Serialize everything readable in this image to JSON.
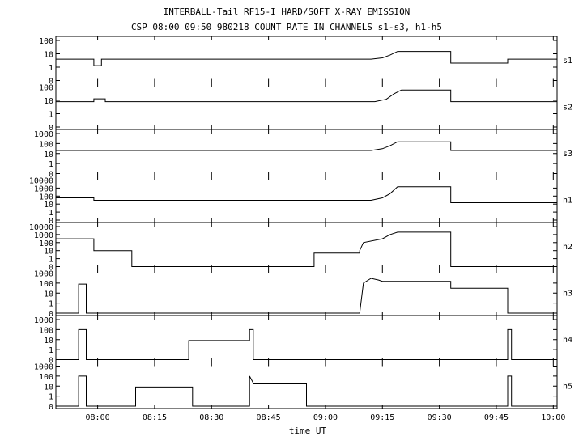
{
  "chart_data": {
    "type": "line",
    "title": "INTERBALL-Tail RF15-I HARD/SOFT X-RAY EMISSION",
    "subtitle": "CSP 08:00 09:50 980218  COUNT RATE IN CHANNELS s1-s3, h1-h5",
    "xlabel": "time UT",
    "x_ticks": [
      {
        "value": 480,
        "label": "08:00"
      },
      {
        "value": 495,
        "label": "08:15"
      },
      {
        "value": 510,
        "label": "08:30"
      },
      {
        "value": 525,
        "label": "08:45"
      },
      {
        "value": 540,
        "label": "09:00"
      },
      {
        "value": 555,
        "label": "09:15"
      },
      {
        "value": 570,
        "label": "09:30"
      },
      {
        "value": 585,
        "label": "09:45"
      },
      {
        "value": 600,
        "label": "10:00"
      }
    ],
    "xlim": [
      469,
      601
    ],
    "yscale": "log",
    "panels": [
      {
        "name": "s1",
        "y_ticks": [
          "100",
          "10",
          "1",
          "0"
        ],
        "points": [
          [
            469,
            4
          ],
          [
            479,
            4
          ],
          [
            479,
            1.3
          ],
          [
            481,
            1.3
          ],
          [
            481,
            4
          ],
          [
            552,
            4
          ],
          [
            555,
            5
          ],
          [
            557,
            8
          ],
          [
            559,
            15
          ],
          [
            560,
            15
          ],
          [
            573,
            15
          ],
          [
            573,
            2
          ],
          [
            588,
            2
          ],
          [
            588,
            4
          ],
          [
            601,
            4
          ]
        ]
      },
      {
        "name": "s2",
        "y_ticks": [
          "100",
          "10",
          "1",
          "0"
        ],
        "points": [
          [
            469,
            8
          ],
          [
            479,
            8
          ],
          [
            479,
            13
          ],
          [
            482,
            13
          ],
          [
            482,
            8
          ],
          [
            553,
            8
          ],
          [
            556,
            12
          ],
          [
            558,
            30
          ],
          [
            560,
            60
          ],
          [
            573,
            60
          ],
          [
            573,
            8
          ],
          [
            588,
            8
          ],
          [
            588,
            8
          ],
          [
            601,
            8
          ]
        ]
      },
      {
        "name": "s3",
        "y_ticks": [
          "1000",
          "100",
          "10",
          "1",
          "0"
        ],
        "points": [
          [
            469,
            20
          ],
          [
            552,
            20
          ],
          [
            555,
            30
          ],
          [
            557,
            60
          ],
          [
            559,
            150
          ],
          [
            573,
            150
          ],
          [
            573,
            20
          ],
          [
            601,
            20
          ]
        ]
      },
      {
        "name": "h1",
        "y_ticks": [
          "10000",
          "1000",
          "100",
          "10",
          "1",
          "0"
        ],
        "points": [
          [
            469,
            60
          ],
          [
            479,
            60
          ],
          [
            479,
            30
          ],
          [
            552,
            30
          ],
          [
            555,
            60
          ],
          [
            557,
            200
          ],
          [
            559,
            1500
          ],
          [
            573,
            1500
          ],
          [
            573,
            15
          ],
          [
            601,
            15
          ]
        ]
      },
      {
        "name": "h2",
        "y_ticks": [
          "10000",
          "1000",
          "100",
          "10",
          "1",
          "0"
        ],
        "points": [
          [
            469,
            300
          ],
          [
            479,
            300
          ],
          [
            479,
            10
          ],
          [
            489,
            10
          ],
          [
            489,
            0
          ],
          [
            537,
            0
          ],
          [
            537,
            5
          ],
          [
            549,
            5
          ],
          [
            549,
            10
          ],
          [
            550,
            100
          ],
          [
            555,
            300
          ],
          [
            557,
            1000
          ],
          [
            559,
            2000
          ],
          [
            573,
            2000
          ],
          [
            573,
            0
          ],
          [
            601,
            0
          ]
        ]
      },
      {
        "name": "h3",
        "y_ticks": [
          "1000",
          "100",
          "10",
          "1",
          "0"
        ],
        "points": [
          [
            469,
            0
          ],
          [
            475,
            0
          ],
          [
            475,
            80
          ],
          [
            477,
            80
          ],
          [
            477,
            0
          ],
          [
            549,
            0
          ],
          [
            550,
            100
          ],
          [
            552,
            300
          ],
          [
            554,
            200
          ],
          [
            555,
            150
          ],
          [
            573,
            150
          ],
          [
            573,
            30
          ],
          [
            588,
            30
          ],
          [
            588,
            0
          ],
          [
            601,
            0
          ]
        ]
      },
      {
        "name": "h4",
        "y_ticks": [
          "1000",
          "100",
          "10",
          "1",
          "0"
        ],
        "points": [
          [
            469,
            0
          ],
          [
            475,
            0
          ],
          [
            475,
            100
          ],
          [
            477,
            100
          ],
          [
            477,
            0
          ],
          [
            504,
            0
          ],
          [
            504,
            8
          ],
          [
            520,
            8
          ],
          [
            520,
            100
          ],
          [
            521,
            100
          ],
          [
            521,
            0
          ],
          [
            588,
            0
          ],
          [
            588,
            100
          ],
          [
            589,
            100
          ],
          [
            589,
            0
          ],
          [
            601,
            0
          ]
        ]
      },
      {
        "name": "h5",
        "y_ticks": [
          "1000",
          "100",
          "10",
          "1",
          "0"
        ],
        "points": [
          [
            469,
            0
          ],
          [
            475,
            0
          ],
          [
            475,
            100
          ],
          [
            477,
            100
          ],
          [
            477,
            0
          ],
          [
            490,
            0
          ],
          [
            490,
            8
          ],
          [
            505,
            8
          ],
          [
            505,
            0
          ],
          [
            520,
            0
          ],
          [
            520,
            100
          ],
          [
            521,
            20
          ],
          [
            535,
            20
          ],
          [
            535,
            0
          ],
          [
            588,
            0
          ],
          [
            588,
            100
          ],
          [
            589,
            100
          ],
          [
            589,
            0
          ],
          [
            601,
            0
          ]
        ]
      }
    ],
    "grid": false,
    "legend": "none"
  }
}
